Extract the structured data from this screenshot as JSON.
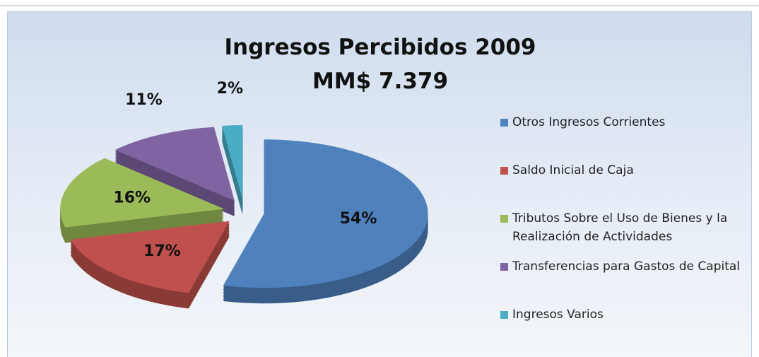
{
  "chart_data": {
    "type": "pie",
    "title": "Ingresos Percibidos 2009",
    "subtitle": "MM$ 7.379",
    "categories": [
      "Otros Ingresos Corrientes",
      "Saldo Inicial de Caja",
      "Tributos Sobre el Uso de Bienes y la Realización de Actividades",
      "Transferencias para Gastos de Capital",
      "Ingresos Varios"
    ],
    "values": [
      54,
      17,
      16,
      11,
      2
    ],
    "value_labels": [
      "54%",
      "17%",
      "16%",
      "11%",
      "2%"
    ],
    "colors": [
      "#4f81bd",
      "#c0504d",
      "#9bbb59",
      "#8064a2",
      "#4bacc6"
    ],
    "legend": "right"
  }
}
